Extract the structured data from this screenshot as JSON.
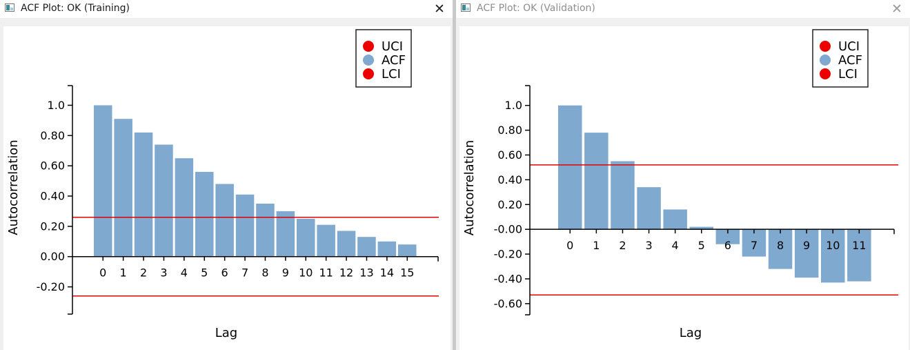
{
  "windows": [
    {
      "title": "ACF Plot: OK (Training)",
      "close_glyph": "✕"
    },
    {
      "title": "ACF Plot: OK (Validation)",
      "close_glyph": "✕"
    }
  ],
  "colors": {
    "acf_bar": "#7fa9cf",
    "confidence_line": "#e00000",
    "legend_ci_marker": "#ee0000",
    "legend_acf_marker": "#7fa9cf",
    "axis": "#000000"
  },
  "chart_data": [
    {
      "type": "bar",
      "xlabel": "Lag",
      "ylabel": "Autocorrelation",
      "categories": [
        "0",
        "1",
        "2",
        "3",
        "4",
        "5",
        "6",
        "7",
        "8",
        "9",
        "10",
        "11",
        "12",
        "13",
        "14",
        "15"
      ],
      "series": [
        {
          "name": "ACF",
          "values": [
            1.0,
            0.91,
            0.82,
            0.74,
            0.65,
            0.56,
            0.48,
            0.41,
            0.35,
            0.3,
            0.25,
            0.21,
            0.17,
            0.13,
            0.1,
            0.08
          ]
        }
      ],
      "uci": 0.26,
      "lci": -0.26,
      "ylim": [
        -0.38,
        1.13
      ],
      "yticks": [
        1.0,
        0.8,
        0.6,
        0.4,
        0.2,
        0.0,
        -0.2
      ],
      "ytick_labels": [
        "1.0",
        "0.80",
        "0.60",
        "0.40",
        "0.20",
        "0.00",
        "-0.20"
      ],
      "legend": [
        "UCI",
        "ACF",
        "LCI"
      ],
      "legend_position": "top-right",
      "grid": false
    },
    {
      "type": "bar",
      "xlabel": "Lag",
      "ylabel": "Autocorrelation",
      "categories": [
        "0",
        "1",
        "2",
        "3",
        "4",
        "5",
        "6",
        "7",
        "8",
        "9",
        "10",
        "11"
      ],
      "series": [
        {
          "name": "ACF",
          "values": [
            1.0,
            0.78,
            0.55,
            0.34,
            0.16,
            0.02,
            -0.12,
            -0.22,
            -0.32,
            -0.39,
            -0.43,
            -0.42
          ]
        }
      ],
      "uci": 0.52,
      "lci": -0.53,
      "ylim": [
        -0.69,
        1.16
      ],
      "yticks": [
        1.0,
        0.8,
        0.6,
        0.4,
        0.2,
        0.0,
        -0.2,
        -0.4,
        -0.6
      ],
      "ytick_labels": [
        "1.0",
        "0.80",
        "0.60",
        "0.40",
        "0.20",
        "-0.00",
        "-0.20",
        "-0.40",
        "-0.60"
      ],
      "legend": [
        "UCI",
        "ACF",
        "LCI"
      ],
      "legend_position": "top-right",
      "grid": false
    }
  ]
}
